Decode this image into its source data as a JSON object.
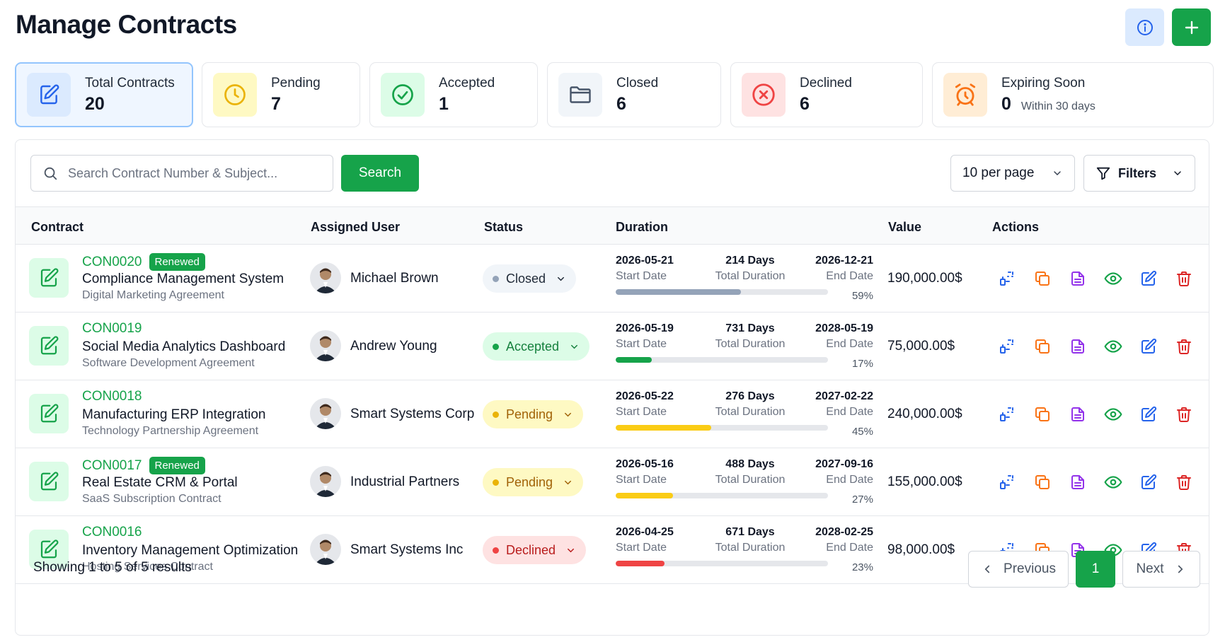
{
  "header": {
    "title": "Manage Contracts"
  },
  "stats": [
    {
      "label": "Total Contracts",
      "value": "20",
      "sub": "",
      "icon": "edit-document-icon"
    },
    {
      "label": "Pending",
      "value": "7",
      "sub": "",
      "icon": "clock-icon"
    },
    {
      "label": "Accepted",
      "value": "1",
      "sub": "",
      "icon": "check-circle-icon"
    },
    {
      "label": "Closed",
      "value": "6",
      "sub": "",
      "icon": "folder-icon"
    },
    {
      "label": "Declined",
      "value": "6",
      "sub": "",
      "icon": "x-circle-icon"
    },
    {
      "label": "Expiring Soon",
      "value": "0",
      "sub": "Within 30 days",
      "icon": "alarm-clock-icon"
    }
  ],
  "toolbar": {
    "search_placeholder": "Search Contract Number & Subject...",
    "search_label": "Search",
    "per_page": "10 per page",
    "filters_label": "Filters"
  },
  "table": {
    "headers": [
      "Contract",
      "Assigned User",
      "Status",
      "Duration",
      "Value",
      "Actions"
    ],
    "rows": [
      {
        "number": "CON0020",
        "renewed": "Renewed",
        "subject": "Compliance Management System",
        "type": "Digital Marketing Agreement",
        "user": "Michael Brown",
        "status": "Closed",
        "start": "2026-05-21",
        "start_label": "Start Date",
        "days": "214 Days",
        "total_label": "Total Duration",
        "end": "2026-12-21",
        "end_label": "End Date",
        "progress": 59,
        "progress_text": "59%",
        "value": "190,000.00$"
      },
      {
        "number": "CON0019",
        "renewed": "",
        "subject": "Social Media Analytics Dashboard",
        "type": "Software Development Agreement",
        "user": "Andrew Young",
        "status": "Accepted",
        "start": "2026-05-19",
        "start_label": "Start Date",
        "days": "731 Days",
        "total_label": "Total Duration",
        "end": "2028-05-19",
        "end_label": "End Date",
        "progress": 17,
        "progress_text": "17%",
        "value": "75,000.00$"
      },
      {
        "number": "CON0018",
        "renewed": "",
        "subject": "Manufacturing ERP Integration",
        "type": "Technology Partnership Agreement",
        "user": "Smart Systems Corp",
        "status": "Pending",
        "start": "2026-05-22",
        "start_label": "Start Date",
        "days": "276 Days",
        "total_label": "Total Duration",
        "end": "2027-02-22",
        "end_label": "End Date",
        "progress": 45,
        "progress_text": "45%",
        "value": "240,000.00$"
      },
      {
        "number": "CON0017",
        "renewed": "Renewed",
        "subject": "Real Estate CRM & Portal",
        "type": "SaaS Subscription Contract",
        "user": "Industrial Partners",
        "status": "Pending",
        "start": "2026-05-16",
        "start_label": "Start Date",
        "days": "488 Days",
        "total_label": "Total Duration",
        "end": "2027-09-16",
        "end_label": "End Date",
        "progress": 27,
        "progress_text": "27%",
        "value": "155,000.00$"
      },
      {
        "number": "CON0016",
        "renewed": "",
        "subject": "Inventory Management Optimization",
        "type": "Hosting Services Contract",
        "user": "Smart Systems Inc",
        "status": "Declined",
        "start": "2026-04-25",
        "start_label": "Start Date",
        "days": "671 Days",
        "total_label": "Total Duration",
        "end": "2028-02-25",
        "end_label": "End Date",
        "progress": 23,
        "progress_text": "23%",
        "value": "98,000.00$"
      }
    ]
  },
  "status_colors": {
    "Closed": {
      "bg": "#f1f5f9",
      "fg": "#1f2937",
      "dot": "#94a3b8",
      "bar": "#94a3b8"
    },
    "Accepted": {
      "bg": "#dcfce7",
      "fg": "#15803d",
      "dot": "#16a34a",
      "bar": "#16a34a"
    },
    "Pending": {
      "bg": "#fef9c3",
      "fg": "#a16207",
      "dot": "#eab308",
      "bar": "#facc15"
    },
    "Declined": {
      "bg": "#fee2e2",
      "fg": "#b91c1c",
      "dot": "#ef4444",
      "bar": "#ef4444"
    }
  },
  "actions": [
    "convert-icon",
    "copy-icon",
    "document-icon",
    "eye-icon",
    "edit-icon",
    "trash-icon"
  ],
  "footer": {
    "summary": "Showing 1 to 5 of 5 results",
    "previous": "Previous",
    "current_page": "1",
    "next": "Next"
  },
  "colors": {
    "accent": "#16a34a",
    "info": "#2563eb"
  }
}
